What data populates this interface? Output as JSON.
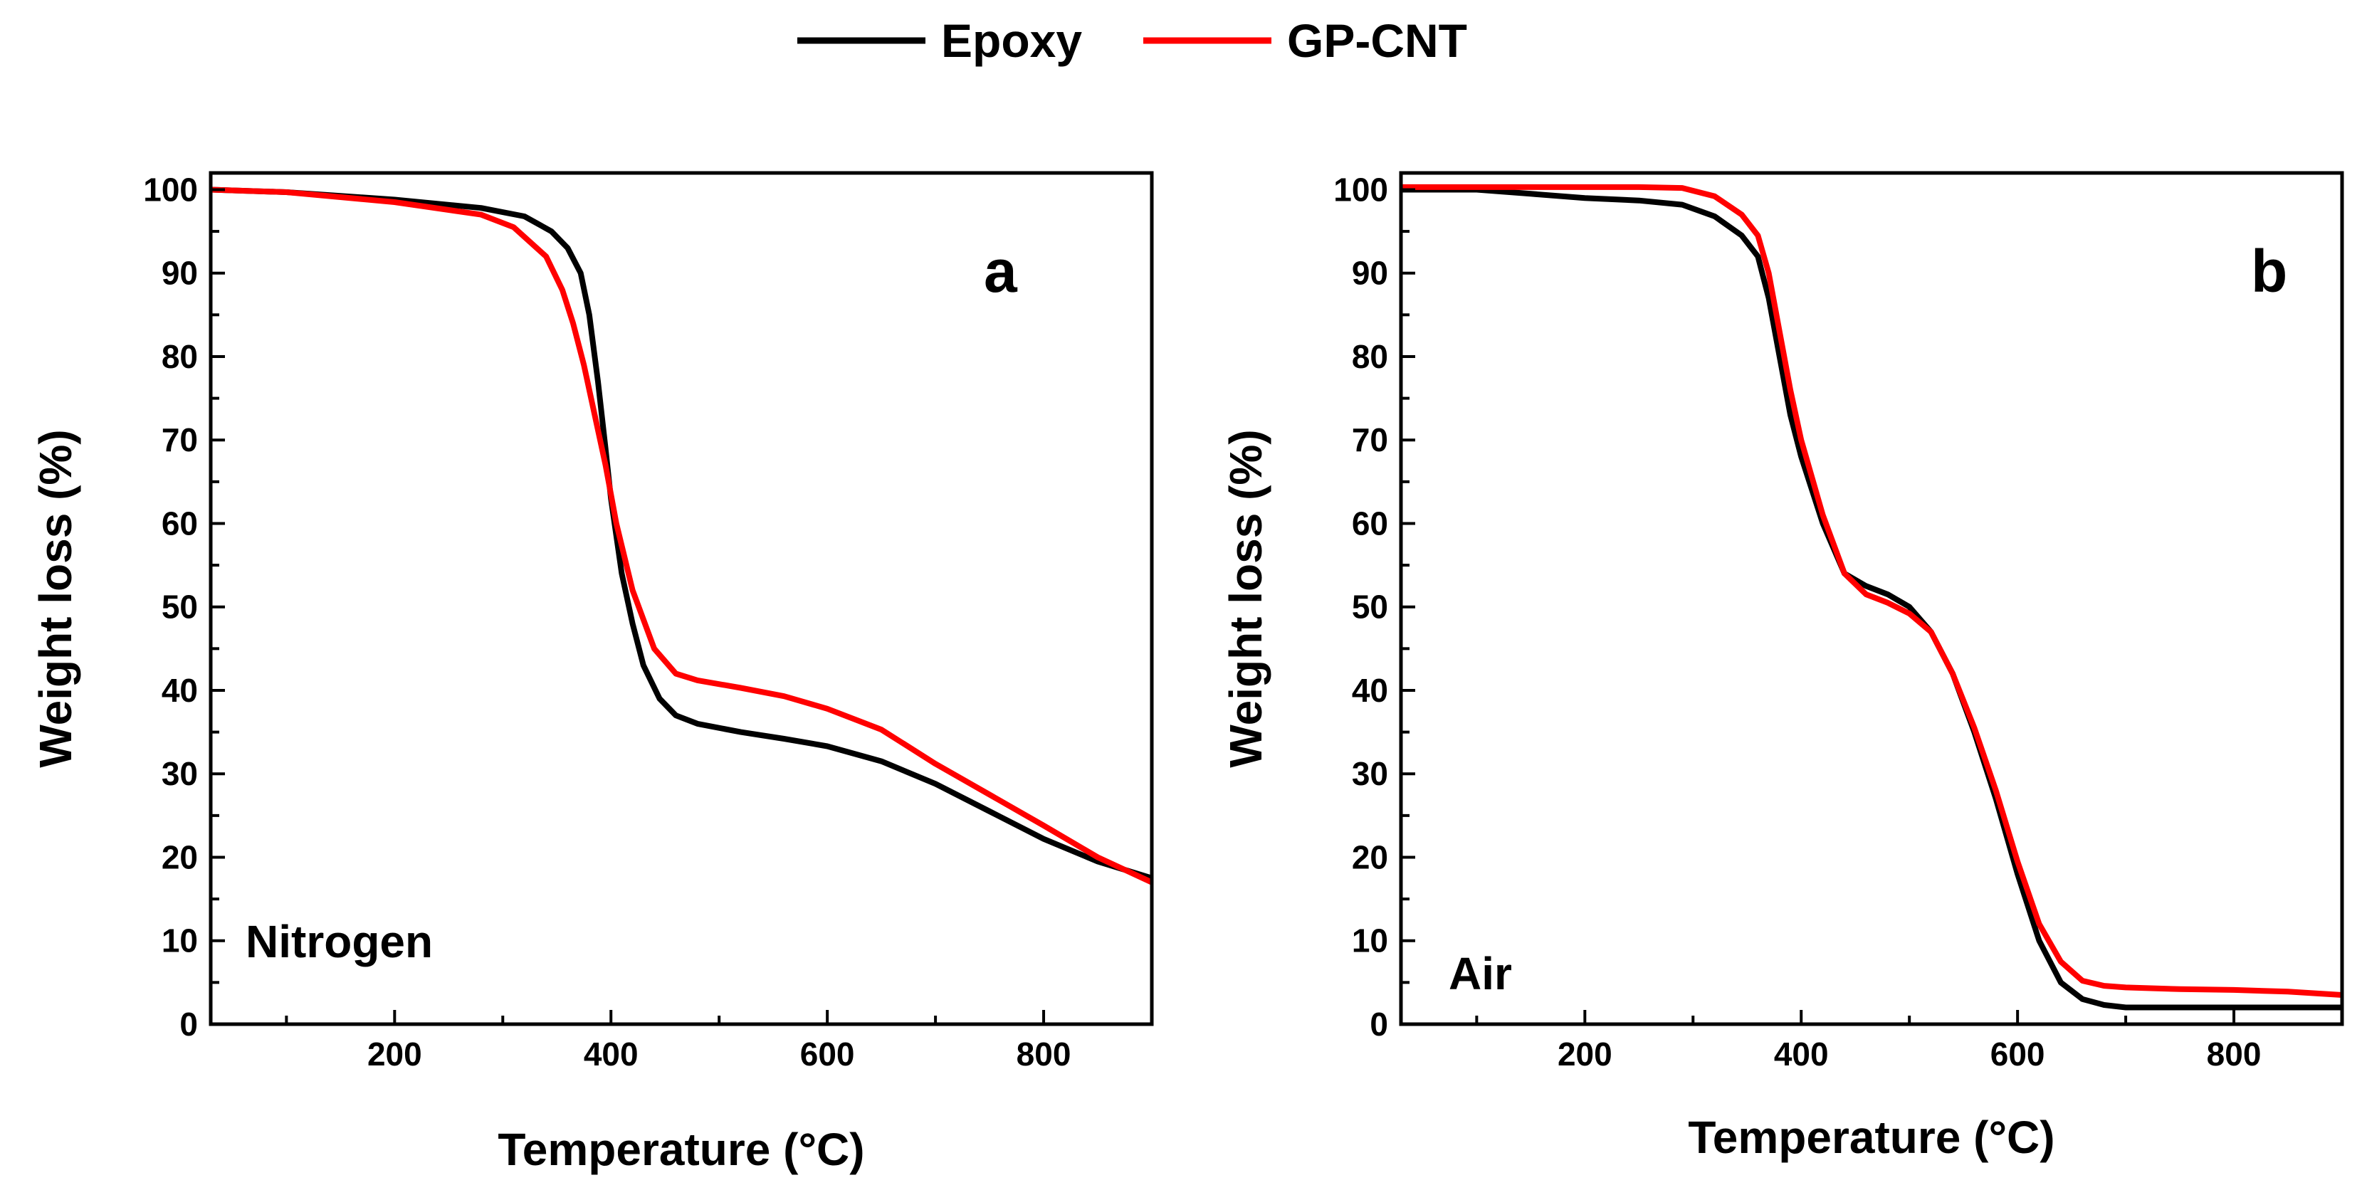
{
  "chart_data": [
    {
      "type": "line",
      "panel_label": "a",
      "annotation": "Nitrogen",
      "xlabel": "Temperature (°C)",
      "ylabel": "Weight loss (%)",
      "xlim": [
        30,
        900
      ],
      "ylim": [
        0,
        102
      ],
      "xticks": [
        200,
        400,
        600,
        800
      ],
      "yticks": [
        0,
        10,
        20,
        30,
        40,
        50,
        60,
        70,
        80,
        90,
        100
      ],
      "grid": false,
      "series": [
        {
          "name": "Epoxy",
          "color": "#000000",
          "x": [
            30,
            100,
            200,
            280,
            320,
            345,
            360,
            372,
            380,
            388,
            395,
            400,
            410,
            420,
            430,
            445,
            460,
            480,
            520,
            560,
            600,
            650,
            700,
            750,
            800,
            850,
            900
          ],
          "y": [
            100,
            99.7,
            98.8,
            97.8,
            96.8,
            95,
            93,
            90,
            85,
            77,
            69,
            63,
            54,
            48,
            43,
            39,
            37,
            36,
            35,
            34.2,
            33.3,
            31.5,
            28.8,
            25.5,
            22.2,
            19.5,
            17.5
          ]
        },
        {
          "name": "GP-CNT",
          "color": "#ff0000",
          "x": [
            30,
            100,
            200,
            280,
            310,
            340,
            355,
            365,
            375,
            385,
            395,
            405,
            420,
            440,
            460,
            480,
            520,
            560,
            600,
            650,
            700,
            750,
            800,
            850,
            900
          ],
          "y": [
            100,
            99.7,
            98.5,
            97,
            95.5,
            92,
            88,
            84,
            79,
            73,
            67,
            60,
            52,
            45,
            42,
            41.2,
            40.3,
            39.3,
            37.8,
            35.3,
            31.2,
            27.5,
            23.8,
            20,
            17
          ]
        }
      ]
    },
    {
      "type": "line",
      "panel_label": "b",
      "annotation": "Air",
      "xlabel": "Temperature (°C)",
      "ylabel": "Weight loss (%)",
      "xlim": [
        30,
        900
      ],
      "ylim": [
        0,
        102
      ],
      "xticks": [
        200,
        400,
        600,
        800
      ],
      "yticks": [
        0,
        10,
        20,
        30,
        40,
        50,
        60,
        70,
        80,
        90,
        100
      ],
      "grid": false,
      "series": [
        {
          "name": "Epoxy",
          "color": "#000000",
          "x": [
            30,
            100,
            150,
            200,
            250,
            290,
            320,
            345,
            360,
            370,
            380,
            390,
            400,
            420,
            440,
            460,
            480,
            500,
            520,
            540,
            560,
            580,
            600,
            620,
            640,
            660,
            680,
            700,
            750,
            800,
            850,
            900
          ],
          "y": [
            100,
            100,
            99.5,
            99,
            98.7,
            98.2,
            96.8,
            94.5,
            92,
            87,
            80,
            73,
            68,
            60,
            54,
            52.5,
            51.5,
            50,
            47,
            42,
            35,
            27,
            18,
            10,
            5,
            3,
            2.3,
            2,
            2,
            2,
            2,
            2
          ]
        },
        {
          "name": "GP-CNT",
          "color": "#ff0000",
          "x": [
            30,
            100,
            150,
            200,
            250,
            290,
            320,
            345,
            360,
            370,
            380,
            390,
            400,
            420,
            440,
            460,
            480,
            500,
            520,
            540,
            560,
            580,
            600,
            620,
            640,
            660,
            680,
            700,
            750,
            800,
            850,
            900
          ],
          "y": [
            100.3,
            100.3,
            100.3,
            100.3,
            100.3,
            100.2,
            99.2,
            97,
            94.5,
            90,
            83,
            76,
            70,
            61,
            54,
            51.5,
            50.5,
            49.2,
            47,
            42,
            35.5,
            28,
            19.5,
            12,
            7.5,
            5.2,
            4.6,
            4.4,
            4.2,
            4.1,
            3.9,
            3.5
          ]
        }
      ]
    }
  ],
  "legend": {
    "items": [
      {
        "label": "Epoxy",
        "color": "#000000"
      },
      {
        "label": "GP-CNT",
        "color": "#ff0000"
      }
    ]
  }
}
